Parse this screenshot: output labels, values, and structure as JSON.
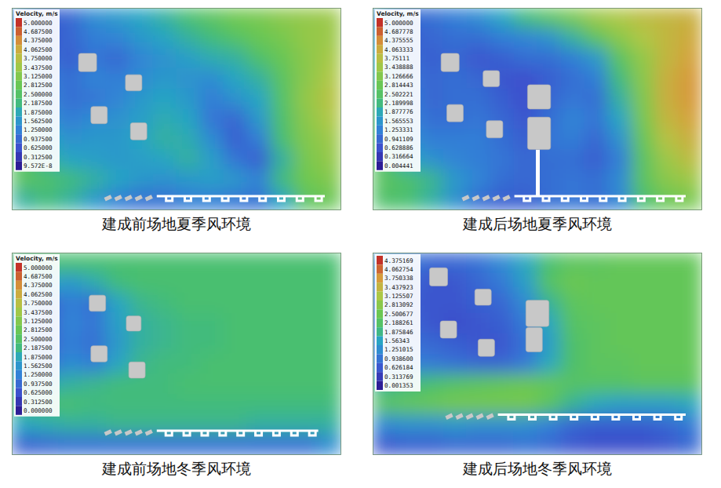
{
  "chart_data": [
    {
      "type": "heatmap",
      "title": "建成前场地夏季风环境",
      "colorbar_title": "Velocity, m/s",
      "colorbar_lim": [
        0,
        5
      ],
      "colorbar_ticks": [
        {
          "value": 5,
          "label": "5.000000"
        },
        {
          "value": 4.6875,
          "label": "4.687500"
        },
        {
          "value": 4.375,
          "label": "4.375000"
        },
        {
          "value": 4.0625,
          "label": "4.062500"
        },
        {
          "value": 3.75,
          "label": "3.750000"
        },
        {
          "value": 3.4375,
          "label": "3.437500"
        },
        {
          "value": 3.125,
          "label": "3.125000"
        },
        {
          "value": 2.8125,
          "label": "2.812500"
        },
        {
          "value": 2.5,
          "label": "2.500000"
        },
        {
          "value": 2.1875,
          "label": "2.187500"
        },
        {
          "value": 1.875,
          "label": "1.875000"
        },
        {
          "value": 1.5625,
          "label": "1.562500"
        },
        {
          "value": 1.25,
          "label": "1.250000"
        },
        {
          "value": 0.9375,
          "label": "0.937500"
        },
        {
          "value": 0.625,
          "label": "0.625000"
        },
        {
          "value": 0.3125,
          "label": "0.312500"
        },
        {
          "value": 9.572e-08,
          "label": "9.572E-8"
        }
      ],
      "cells": [
        [
          1.2,
          0.8,
          0.9,
          1.4,
          1.6,
          1.8,
          2.0,
          2.3,
          2.6,
          2.9,
          3.0,
          3.2,
          3.3,
          3.4
        ],
        [
          1.5,
          0.7,
          0.9,
          1.2,
          1.3,
          1.6,
          1.8,
          2.0,
          2.2,
          2.5,
          2.8,
          3.0,
          3.3,
          3.4
        ],
        [
          1.8,
          1.0,
          0.8,
          1.1,
          0.9,
          1.3,
          1.5,
          1.7,
          1.9,
          2.0,
          2.4,
          2.8,
          3.2,
          3.5
        ],
        [
          2.0,
          1.2,
          1.0,
          1.3,
          1.2,
          1.4,
          1.6,
          1.5,
          1.4,
          1.8,
          2.0,
          2.6,
          3.2,
          3.6
        ],
        [
          2.2,
          1.3,
          1.0,
          1.1,
          1.3,
          1.6,
          1.8,
          1.6,
          1.2,
          1.5,
          1.8,
          2.5,
          3.3,
          3.7
        ],
        [
          2.3,
          1.5,
          1.2,
          1.4,
          1.5,
          1.7,
          1.9,
          1.8,
          1.1,
          0.9,
          1.6,
          2.4,
          3.2,
          3.6
        ],
        [
          2.4,
          1.8,
          1.5,
          1.6,
          1.6,
          1.8,
          2.0,
          1.9,
          1.4,
          0.8,
          1.2,
          2.3,
          3.1,
          3.4
        ],
        [
          2.5,
          2.0,
          1.8,
          1.7,
          1.6,
          1.7,
          1.8,
          2.0,
          1.7,
          1.1,
          0.8,
          2.0,
          3.0,
          3.3
        ],
        [
          2.6,
          2.4,
          2.2,
          2.0,
          1.8,
          1.6,
          1.5,
          1.6,
          1.7,
          1.6,
          1.3,
          2.2,
          2.9,
          3.1
        ],
        [
          2.0,
          2.2,
          2.0,
          1.6,
          1.2,
          1.0,
          1.0,
          1.2,
          1.2,
          1.1,
          1.0,
          1.8,
          2.6,
          2.8
        ]
      ]
    },
    {
      "type": "heatmap",
      "title": "建成后场地夏季风环境",
      "colorbar_title": "Velocity, m/s",
      "colorbar_lim": [
        0.004441,
        5
      ],
      "colorbar_ticks": [
        {
          "value": 5,
          "label": "5.000000"
        },
        4.687778,
        4.375555,
        4.063333,
        3.75111,
        {
          "value": 3.438888,
          "label": "3.438888"
        },
        3.126666,
        2.814443,
        2.502221,
        2.189998,
        1.877776,
        1.565553,
        1.253331,
        0.941109,
        0.628886,
        0.316664,
        0.004441
      ],
      "cells": [
        [
          1.4,
          0.9,
          1.0,
          1.2,
          1.4,
          1.8,
          2.2,
          2.6,
          3.0,
          3.4,
          3.6,
          3.8,
          3.9,
          4.0
        ],
        [
          1.6,
          0.8,
          0.9,
          1.0,
          1.0,
          1.2,
          1.3,
          1.5,
          2.0,
          2.6,
          3.2,
          3.6,
          3.9,
          4.1
        ],
        [
          1.8,
          1.0,
          0.8,
          0.9,
          0.7,
          0.8,
          1.0,
          1.0,
          1.2,
          1.6,
          2.6,
          3.3,
          3.9,
          4.2
        ],
        [
          2.0,
          1.1,
          0.9,
          1.0,
          0.9,
          0.7,
          0.6,
          0.8,
          1.0,
          1.2,
          2.2,
          3.2,
          4.0,
          4.3
        ],
        [
          2.1,
          1.2,
          0.9,
          1.0,
          1.0,
          0.8,
          0.6,
          0.9,
          1.1,
          1.0,
          2.0,
          3.1,
          4.0,
          4.3
        ],
        [
          2.2,
          1.3,
          1.0,
          1.0,
          1.1,
          0.9,
          0.7,
          1.0,
          1.3,
          1.1,
          1.8,
          3.0,
          3.9,
          4.2
        ],
        [
          2.3,
          1.5,
          1.2,
          1.2,
          1.2,
          1.0,
          0.8,
          1.1,
          1.2,
          0.9,
          1.5,
          2.8,
          3.7,
          4.0
        ],
        [
          2.4,
          1.8,
          1.5,
          1.3,
          1.2,
          1.1,
          0.9,
          1.0,
          1.0,
          0.8,
          1.2,
          2.6,
          3.4,
          3.8
        ],
        [
          2.6,
          2.4,
          2.1,
          1.6,
          1.3,
          1.0,
          0.9,
          1.0,
          1.1,
          1.0,
          1.4,
          2.6,
          3.2,
          3.4
        ],
        [
          2.4,
          2.3,
          2.0,
          1.5,
          1.0,
          0.8,
          0.8,
          1.0,
          1.1,
          1.0,
          1.3,
          2.3,
          2.8,
          3.0
        ]
      ]
    },
    {
      "type": "heatmap",
      "title": "建成前场地冬季风环境",
      "colorbar_title": "Velocity, m/s",
      "colorbar_lim": [
        0,
        5
      ],
      "colorbar_ticks": [
        {
          "value": 5,
          "label": "5.000000"
        },
        {
          "value": 4.6875,
          "label": "4.687500"
        },
        {
          "value": 4.375,
          "label": "4.375000"
        },
        {
          "value": 4.0625,
          "label": "4.062500"
        },
        {
          "value": 3.75,
          "label": "3.750000"
        },
        {
          "value": 3.4375,
          "label": "3.437500"
        },
        {
          "value": 3.125,
          "label": "3.125000"
        },
        {
          "value": 2.8125,
          "label": "2.812500"
        },
        {
          "value": 2.5,
          "label": "2.500000"
        },
        {
          "value": 2.1875,
          "label": "2.187500"
        },
        {
          "value": 1.875,
          "label": "1.875000"
        },
        {
          "value": 1.5625,
          "label": "1.562500"
        },
        {
          "value": 1.25,
          "label": "1.250000"
        },
        {
          "value": 0.9375,
          "label": "0.937500"
        },
        {
          "value": 0.625,
          "label": "0.625000"
        },
        {
          "value": 0.3125,
          "label": "0.312500"
        },
        {
          "value": 0,
          "label": "0.000000"
        }
      ],
      "cells": [
        [
          2.2,
          2.3,
          2.3,
          2.3,
          2.3,
          2.3,
          2.3,
          2.3,
          2.3,
          2.3,
          2.3,
          2.3,
          2.3,
          2.3
        ],
        [
          2.0,
          1.8,
          1.6,
          1.9,
          2.2,
          2.3,
          2.3,
          2.3,
          2.3,
          2.3,
          2.3,
          2.3,
          2.3,
          2.3
        ],
        [
          1.6,
          0.8,
          1.2,
          1.0,
          1.8,
          2.1,
          2.2,
          2.3,
          2.3,
          2.3,
          2.3,
          2.3,
          2.3,
          2.3
        ],
        [
          1.4,
          0.8,
          1.3,
          1.1,
          1.7,
          2.0,
          2.1,
          2.2,
          2.2,
          2.3,
          2.3,
          2.3,
          2.3,
          2.3
        ],
        [
          1.5,
          0.9,
          1.2,
          1.0,
          1.6,
          2.0,
          2.1,
          2.2,
          2.2,
          2.3,
          2.3,
          2.3,
          2.3,
          2.3
        ],
        [
          1.6,
          1.0,
          1.4,
          1.2,
          1.8,
          2.1,
          2.2,
          2.2,
          2.3,
          2.3,
          2.3,
          2.3,
          2.3,
          2.3
        ],
        [
          2.0,
          1.9,
          2.0,
          2.1,
          2.2,
          2.2,
          2.2,
          2.3,
          2.3,
          2.3,
          2.3,
          2.3,
          2.3,
          2.3
        ],
        [
          2.3,
          2.3,
          2.3,
          2.2,
          2.2,
          2.2,
          2.2,
          2.2,
          2.2,
          2.2,
          2.2,
          2.2,
          2.2,
          2.2
        ],
        [
          1.8,
          1.9,
          2.0,
          2.0,
          2.1,
          2.1,
          2.1,
          2.1,
          2.1,
          2.1,
          2.0,
          2.0,
          2.0,
          2.0
        ],
        [
          0.8,
          0.9,
          1.0,
          1.0,
          1.0,
          1.0,
          1.0,
          1.0,
          1.0,
          1.0,
          1.0,
          1.0,
          1.0,
          1.4
        ]
      ]
    },
    {
      "type": "heatmap",
      "title": "建成后场地冬季风环境",
      "colorbar_lim": [
        0.001353,
        4.375169
      ],
      "colorbar_ticks": [
        4.375169,
        4.062754,
        3.750338,
        3.437923,
        3.125507,
        2.813092,
        2.500677,
        2.188261,
        1.875846,
        1.56343,
        {
          "value": 1.251015,
          "label": "1.251015"
        },
        {
          "value": 0.9386,
          "label": "0.938600"
        },
        0.626184,
        0.313769,
        0.001353
      ],
      "cells": [
        [
          1.2,
          1.0,
          0.8,
          0.8,
          0.9,
          1.2,
          1.6,
          2.0,
          2.3,
          2.3,
          2.4,
          2.4,
          2.4,
          2.4
        ],
        [
          1.0,
          0.8,
          0.6,
          0.6,
          0.8,
          1.0,
          1.5,
          2.2,
          2.5,
          2.4,
          2.4,
          2.4,
          2.4,
          2.4
        ],
        [
          0.9,
          0.7,
          0.6,
          0.6,
          0.7,
          0.8,
          1.2,
          1.8,
          2.3,
          2.4,
          2.4,
          2.4,
          2.4,
          2.4
        ],
        [
          0.9,
          0.8,
          0.6,
          0.5,
          0.6,
          0.7,
          1.0,
          1.6,
          2.2,
          2.3,
          2.4,
          2.4,
          2.4,
          2.4
        ],
        [
          1.0,
          0.9,
          0.8,
          0.7,
          0.6,
          0.6,
          0.9,
          1.5,
          2.1,
          2.3,
          2.4,
          2.4,
          2.4,
          2.4
        ],
        [
          1.2,
          1.1,
          1.0,
          0.9,
          0.8,
          0.8,
          1.0,
          1.6,
          2.1,
          2.3,
          2.3,
          2.4,
          2.4,
          2.4
        ],
        [
          1.8,
          1.9,
          2.0,
          2.2,
          2.3,
          2.4,
          2.5,
          2.4,
          2.2,
          2.2,
          2.2,
          2.3,
          2.3,
          2.3
        ],
        [
          2.3,
          2.4,
          2.5,
          2.6,
          2.6,
          2.6,
          2.6,
          2.3,
          1.8,
          1.6,
          1.5,
          1.5,
          1.5,
          1.6
        ],
        [
          1.2,
          1.3,
          1.3,
          1.4,
          1.3,
          1.3,
          1.3,
          1.1,
          0.8,
          0.7,
          0.7,
          0.7,
          0.8,
          1.0
        ],
        [
          0.6,
          0.7,
          0.7,
          0.8,
          0.8,
          0.8,
          0.9,
          0.8,
          0.6,
          0.5,
          0.5,
          0.5,
          0.6,
          0.8
        ]
      ]
    }
  ]
}
